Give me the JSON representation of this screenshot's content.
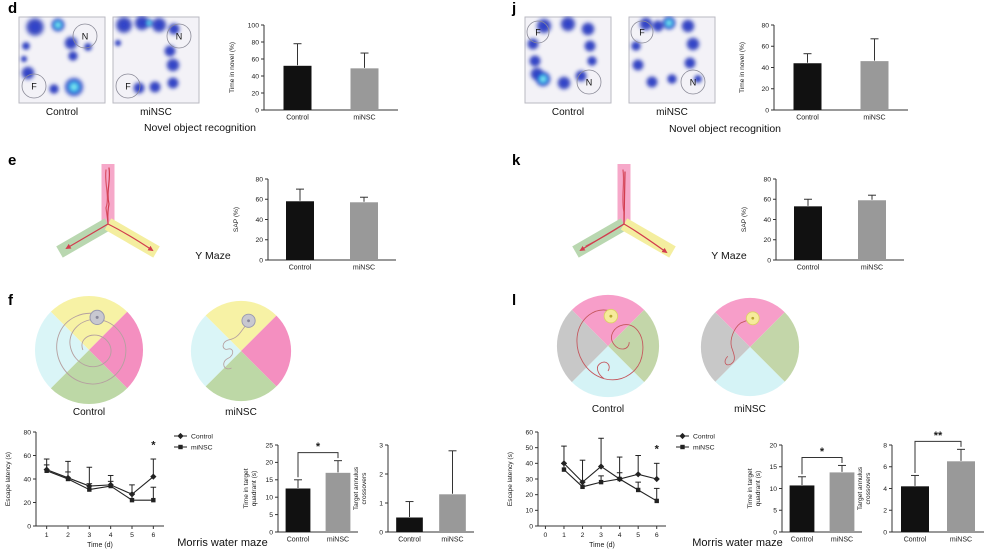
{
  "labels": {
    "control": "Control",
    "minsc": "miNSC"
  },
  "captions": {
    "novel_object": "Novel object recognition",
    "y_maze": "Y Maze",
    "morris": "Morris water maze"
  },
  "panel_letters": {
    "d": "d",
    "e": "e",
    "f": "f",
    "j": "j",
    "k": "k",
    "l": "l"
  },
  "heatmap_markers": {
    "novel": "N",
    "familiar": "F"
  },
  "colors": {
    "bars": [
      "#111111",
      "#999999"
    ],
    "axis": "#333333",
    "heat_blue": "#1d2fb6",
    "heat_bright": "#3fc8f0",
    "maze_trace_red": "#d23c4e",
    "wm_f_quadrants": {
      "top": "#f7f2a5",
      "right": "#f48fc0",
      "bottom": "#bdd8a6",
      "left": "#daf5f7"
    },
    "wm_l_quadrants": {
      "top": "#f79ec9",
      "right": "#c3d6a9",
      "bottom": "#d5f3f6",
      "left": "#c8c8c8"
    },
    "ymaze_arms": {
      "top": "#f6a8c9",
      "lower_left": "#b9d7b0",
      "lower_right": "#f4ee9f"
    },
    "wm_f_platform": "#c8c8d0",
    "wm_l_platform": "#f6eb9b"
  },
  "chart_data": [
    {
      "id": "d-time-novel",
      "type": "bar",
      "title": "",
      "ylabel": "Time in novel (%)",
      "ylim": [
        0,
        100
      ],
      "yticks": [
        0,
        20,
        40,
        60,
        80,
        100
      ],
      "categories": [
        "Control",
        "miNSC"
      ],
      "values": [
        52,
        49
      ],
      "errors": [
        26,
        18
      ]
    },
    {
      "id": "j-time-novel",
      "type": "bar",
      "title": "",
      "ylabel": "Time in novel (%)",
      "ylim": [
        0,
        80
      ],
      "yticks": [
        0,
        20,
        40,
        60,
        80
      ],
      "categories": [
        "Control",
        "miNSC"
      ],
      "values": [
        44,
        46
      ],
      "errors": [
        9,
        21
      ]
    },
    {
      "id": "e-sap",
      "type": "bar",
      "title": "",
      "ylabel": "SAP (%)",
      "ylim": [
        0,
        80
      ],
      "yticks": [
        0,
        20,
        40,
        60,
        80
      ],
      "categories": [
        "Control",
        "miNSC"
      ],
      "values": [
        58,
        57
      ],
      "errors": [
        12,
        5
      ]
    },
    {
      "id": "k-sap",
      "type": "bar",
      "title": "",
      "ylabel": "SAP (%)",
      "ylim": [
        0,
        80
      ],
      "yticks": [
        0,
        20,
        40,
        60,
        80
      ],
      "categories": [
        "Control",
        "miNSC"
      ],
      "values": [
        53,
        59
      ],
      "errors": [
        7,
        5
      ]
    },
    {
      "id": "f-escape",
      "type": "line",
      "title": "",
      "ylabel": "Escape latency (s)",
      "xlabel": "Time (d)",
      "ylim": [
        0,
        80
      ],
      "yticks": [
        0,
        20,
        40,
        60,
        80
      ],
      "xlim": [
        0.5,
        6.5
      ],
      "xticks": [
        1,
        2,
        3,
        4,
        5,
        6
      ],
      "legend": true,
      "legend_position": "right-top",
      "series": [
        {
          "name": "Control",
          "x": [
            1,
            2,
            3,
            4,
            5,
            6
          ],
          "values": [
            48,
            41,
            34,
            35,
            27,
            42
          ],
          "errors": [
            9,
            14,
            16,
            8,
            8,
            15
          ]
        },
        {
          "name": "miNSC",
          "x": [
            1,
            2,
            3,
            4,
            5,
            6
          ],
          "values": [
            47,
            40,
            31,
            34,
            22,
            22
          ],
          "errors": [
            5,
            6,
            5,
            4,
            6,
            11
          ]
        }
      ],
      "annotation": {
        "x": 6,
        "y": 66,
        "text": "*"
      }
    },
    {
      "id": "f-quadrant",
      "type": "bar",
      "title": "",
      "ylabel": "Time in target\nquadrant (s)",
      "ylim": [
        0,
        25
      ],
      "yticks": [
        0,
        5,
        10,
        15,
        20,
        25
      ],
      "categories": [
        "Control",
        "miNSC"
      ],
      "values": [
        12.5,
        17
      ],
      "errors": [
        2.5,
        3.5
      ],
      "sig": "*"
    },
    {
      "id": "f-crossovers",
      "type": "bar",
      "title": "",
      "ylabel": "Target annulus\ncrossovers",
      "ylim": [
        0,
        3
      ],
      "yticks": [
        0,
        1,
        2,
        3
      ],
      "categories": [
        "Control",
        "miNSC"
      ],
      "values": [
        0.5,
        1.3
      ],
      "errors": [
        0.55,
        1.5
      ]
    },
    {
      "id": "l-escape",
      "type": "line",
      "title": "",
      "ylabel": "Escape latency (s)",
      "xlabel": "Time (d)",
      "ylim": [
        0,
        60
      ],
      "yticks": [
        0,
        10,
        20,
        30,
        40,
        50,
        60
      ],
      "xlim": [
        -0.4,
        6.5
      ],
      "xticks": [
        0,
        1,
        2,
        3,
        4,
        5,
        6
      ],
      "legend": true,
      "legend_position": "right-top",
      "series": [
        {
          "name": "Control",
          "x": [
            1,
            2,
            3,
            4,
            5,
            6
          ],
          "values": [
            40,
            28,
            38,
            30,
            33,
            30
          ],
          "errors": [
            11,
            14,
            18,
            14,
            12,
            10
          ]
        },
        {
          "name": "miNSC",
          "x": [
            1,
            2,
            3,
            4,
            5,
            6
          ],
          "values": [
            36,
            25,
            28,
            30,
            23,
            16
          ],
          "errors": [
            4,
            3,
            4,
            4,
            5,
            8
          ]
        }
      ],
      "annotation": {
        "x": 6,
        "y": 47,
        "text": "*"
      }
    },
    {
      "id": "l-quadrant",
      "type": "bar",
      "title": "",
      "ylabel": "Time in target\nquadrant (s)",
      "ylim": [
        0,
        20
      ],
      "yticks": [
        0,
        5,
        10,
        15,
        20
      ],
      "categories": [
        "Control",
        "miNSC"
      ],
      "values": [
        10.7,
        13.7
      ],
      "errors": [
        2,
        1.6
      ],
      "sig": "*"
    },
    {
      "id": "l-crossovers",
      "type": "bar",
      "title": "",
      "ylabel": "Target annulus\ncrossovers",
      "ylim": [
        0,
        8
      ],
      "yticks": [
        0,
        2,
        4,
        6,
        8
      ],
      "categories": [
        "Control",
        "miNSC"
      ],
      "values": [
        4.2,
        6.5
      ],
      "errors": [
        1,
        1.1
      ],
      "sig": "**"
    }
  ]
}
